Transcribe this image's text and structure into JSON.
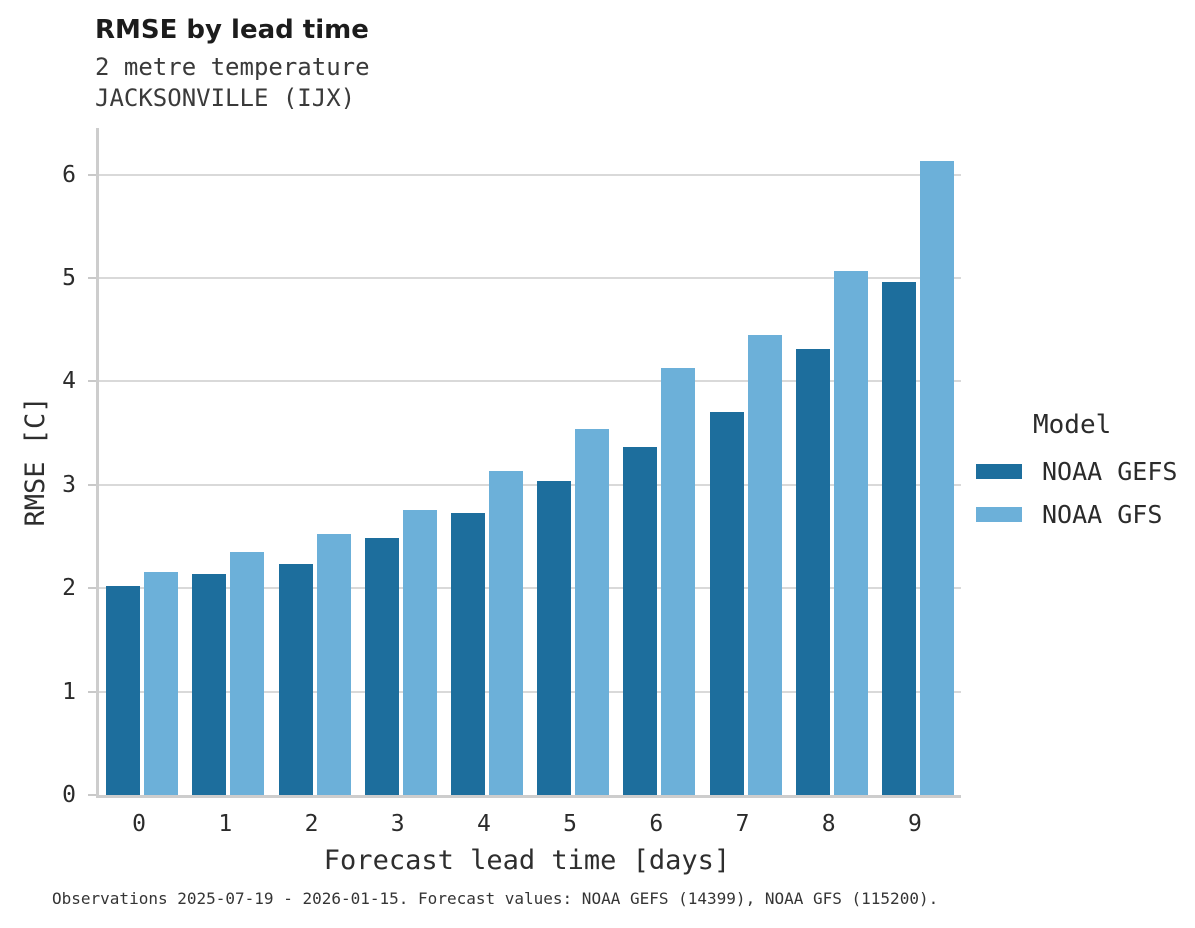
{
  "header": {
    "title": "RMSE by lead time",
    "subtitle_line1": "2 metre temperature",
    "subtitle_line2": "JACKSONVILLE (IJX)"
  },
  "chart_data": {
    "type": "bar",
    "title": "RMSE by lead time",
    "subtitle": "2 metre temperature — JACKSONVILLE (IJX)",
    "categories": [
      "0",
      "1",
      "2",
      "3",
      "4",
      "5",
      "6",
      "7",
      "8",
      "9"
    ],
    "series": [
      {
        "name": "NOAA GEFS",
        "color": "#1d6e9d",
        "values": [
          2.02,
          2.14,
          2.23,
          2.49,
          2.73,
          3.04,
          3.37,
          3.7,
          4.31,
          4.96
        ]
      },
      {
        "name": "NOAA GFS",
        "color": "#6cb0d9",
        "values": [
          2.16,
          2.35,
          2.52,
          2.76,
          3.13,
          3.54,
          4.13,
          4.45,
          5.07,
          6.13
        ]
      }
    ],
    "xlabel": "Forecast lead time [days]",
    "ylabel": "RMSE [C]",
    "ylim": [
      0,
      6.45
    ],
    "yticks": [
      0,
      1,
      2,
      3,
      4,
      5,
      6
    ],
    "grid": "horizontal",
    "legend_title": "Model",
    "legend_position": "right"
  },
  "colors": {
    "series_dark": "#1d6e9d",
    "series_light": "#6cb0d9",
    "gridline": "#d9d9d9",
    "axis_line": "#cdcdcd"
  },
  "caption": "Observations 2025-07-19 - 2026-01-15. Forecast values: NOAA GEFS (14399), NOAA GFS (115200)."
}
